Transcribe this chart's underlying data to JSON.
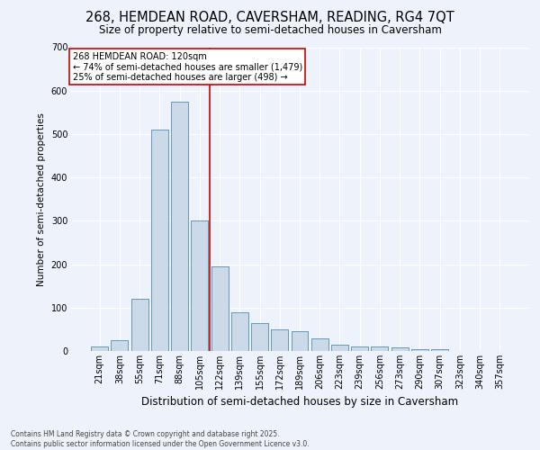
{
  "title": "268, HEMDEAN ROAD, CAVERSHAM, READING, RG4 7QT",
  "subtitle": "Size of property relative to semi-detached houses in Caversham",
  "xlabel": "Distribution of semi-detached houses by size in Caversham",
  "ylabel": "Number of semi-detached properties",
  "categories": [
    "21sqm",
    "38sqm",
    "55sqm",
    "71sqm",
    "88sqm",
    "105sqm",
    "122sqm",
    "139sqm",
    "155sqm",
    "172sqm",
    "189sqm",
    "206sqm",
    "223sqm",
    "239sqm",
    "256sqm",
    "273sqm",
    "290sqm",
    "307sqm",
    "323sqm",
    "340sqm",
    "357sqm"
  ],
  "values": [
    10,
    25,
    120,
    510,
    575,
    300,
    195,
    90,
    65,
    50,
    45,
    30,
    15,
    10,
    10,
    8,
    5,
    5,
    0,
    0,
    0
  ],
  "bar_color": "#ccd9e8",
  "bar_edge_color": "#6699bb",
  "background_color": "#eef2fa",
  "grid_color": "#ffffff",
  "vline_x": 5.5,
  "vline_color": "#cc0000",
  "annotation_title": "268 HEMDEAN ROAD: 120sqm",
  "annotation_line1": "← 74% of semi-detached houses are smaller (1,479)",
  "annotation_line2": "25% of semi-detached houses are larger (498) →",
  "annotation_box_color": "white",
  "annotation_box_edge": "#cc0000",
  "footnote1": "Contains HM Land Registry data © Crown copyright and database right 2025.",
  "footnote2": "Contains public sector information licensed under the Open Government Licence v3.0.",
  "ylim": [
    0,
    700
  ],
  "yticks": [
    0,
    100,
    200,
    300,
    400,
    500,
    600,
    700
  ],
  "title_fontsize": 10.5,
  "subtitle_fontsize": 8.5,
  "xlabel_fontsize": 8.5,
  "ylabel_fontsize": 7.5,
  "annotation_fontsize": 7,
  "footnote_fontsize": 5.5,
  "tick_fontsize": 7
}
